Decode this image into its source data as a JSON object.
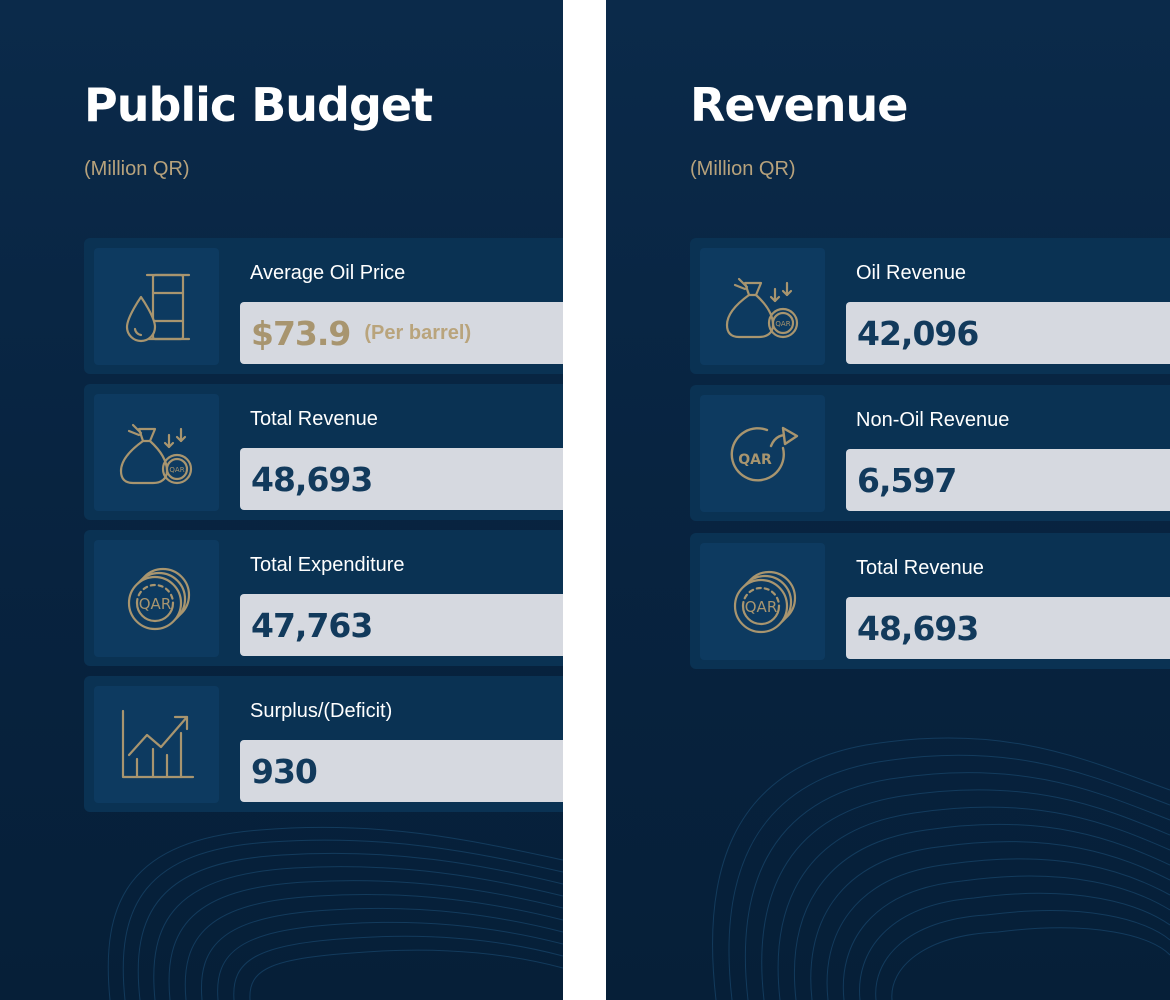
{
  "panels": {
    "budget": {
      "title": "Public Budget",
      "subtitle": "(Million QR)",
      "cards": [
        {
          "label": "Average Oil Price",
          "value": "$73.9",
          "unit": "(Per barrel)",
          "icon": "oil-barrel-drop-icon"
        },
        {
          "label": "Total Revenue",
          "value": "48,693",
          "icon": "money-bag-coin-icon"
        },
        {
          "label": "Total Expenditure",
          "value": "47,763",
          "icon": "coin-stack-icon"
        },
        {
          "label": "Surplus/(Deficit)",
          "value": "930",
          "icon": "bar-chart-growth-icon"
        }
      ]
    },
    "revenue": {
      "title": "Revenue",
      "subtitle": "(Million QR)",
      "cards": [
        {
          "label": "Oil Revenue",
          "value": "42,096",
          "icon": "money-bag-coin-icon"
        },
        {
          "label": "Non-Oil Revenue",
          "value": "6,597",
          "icon": "coin-arrow-up-icon"
        },
        {
          "label": "Total Revenue",
          "value": "48,693",
          "icon": "coin-stack-icon"
        }
      ]
    }
  },
  "icon_text": {
    "currency": "QAR"
  },
  "colors": {
    "background": "#082441",
    "card": "#0a3253",
    "icon_box": "#0d3a60",
    "value_box": "#d6d9e0",
    "gold": "#b7a27c",
    "value_text": "#123a5c"
  }
}
